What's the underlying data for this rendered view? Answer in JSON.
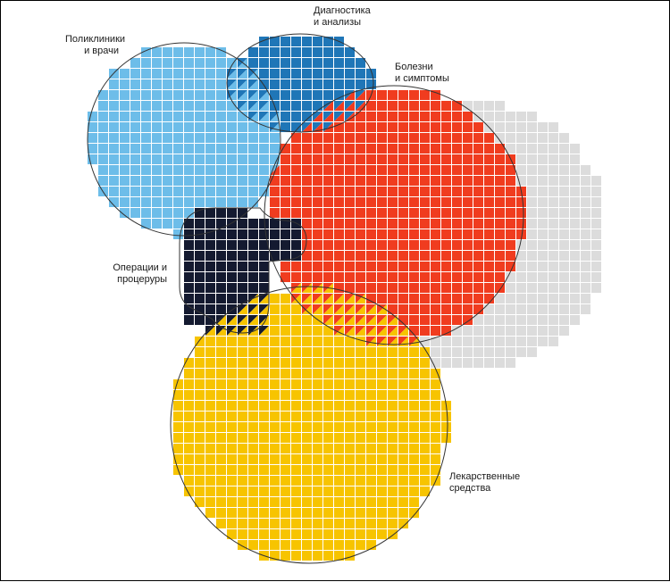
{
  "colors": {
    "clinics": "#6dbde9",
    "diagnostics": "#1f76b7",
    "diseases": "#f03c1f",
    "operations": "#141a30",
    "drugs": "#f7c400",
    "gray": "#dcdcdc",
    "grid_gap": "#ffffff",
    "outline": "#333333"
  },
  "labels": {
    "clinics": [
      "Поликлиники",
      "и врачи"
    ],
    "diagnostics": [
      "Диагностика",
      "и анализы"
    ],
    "diseases": [
      "Болезни",
      "и симптомы"
    ],
    "operations": [
      "Операции и",
      "процеруры"
    ],
    "drugs": [
      "Лекарственные",
      "средства"
    ]
  },
  "sets": [
    {
      "id": "gray",
      "name": "",
      "color_key": "gray"
    },
    {
      "id": "clinics",
      "name": "Поликлиники и врачи",
      "color_key": "clinics"
    },
    {
      "id": "diagnostics",
      "name": "Диагностика и анализы",
      "color_key": "diagnostics"
    },
    {
      "id": "diseases",
      "name": "Болезни и симптомы",
      "color_key": "diseases"
    },
    {
      "id": "operations",
      "name": "Операции и процеруры",
      "color_key": "operations"
    },
    {
      "id": "drugs",
      "name": "Лекарственные средства",
      "color_key": "drugs"
    }
  ]
}
